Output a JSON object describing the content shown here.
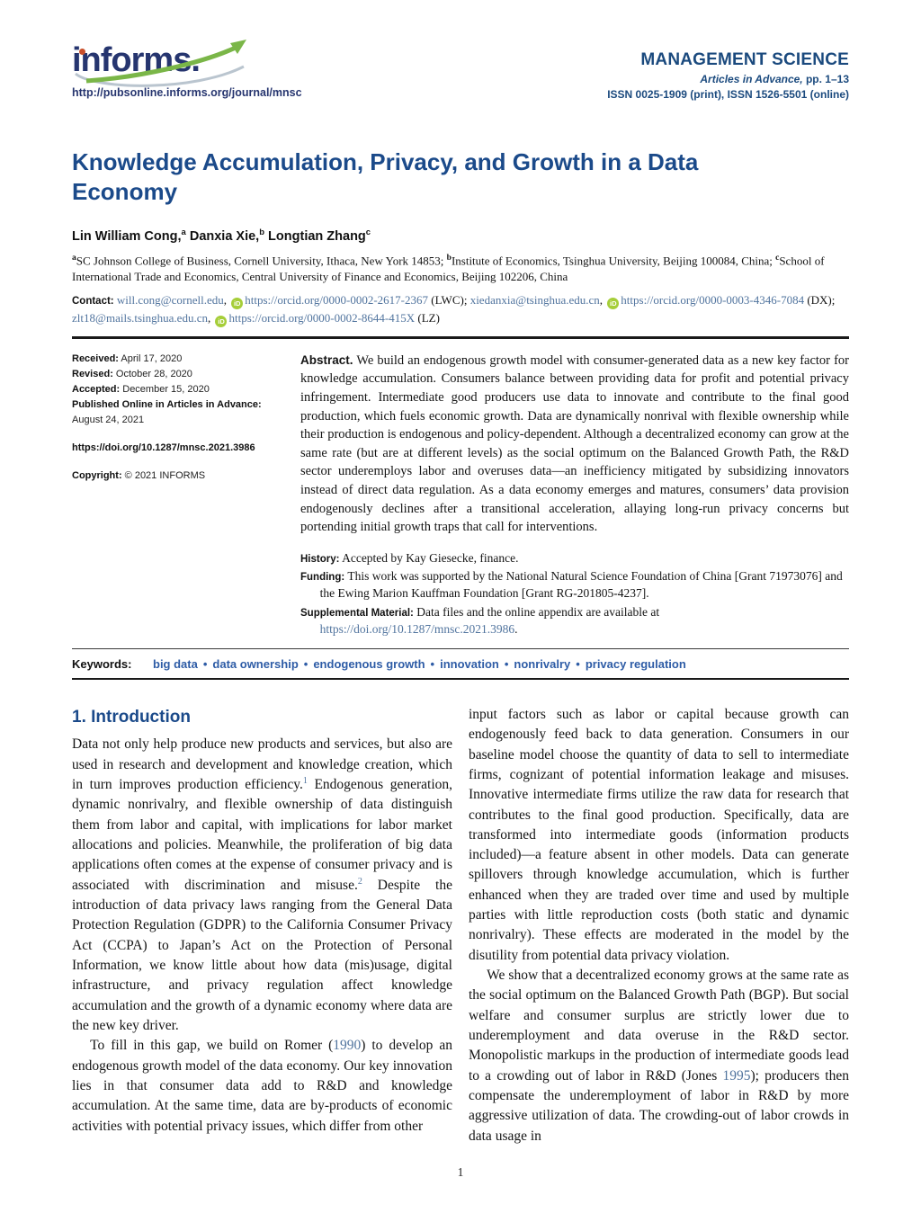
{
  "header": {
    "logo_text": "informs.",
    "logo_url": "http://pubsonline.informs.org/journal/mnsc",
    "journal": "MANAGEMENT SCIENCE",
    "issue_italic": "Articles in Advance,",
    "issue_rest": " pp. 1–13",
    "issn": "ISSN 0025-1909 (print), ISSN 1526-5501 (online)"
  },
  "title": "Knowledge Accumulation, Privacy, and Growth in a Data Economy",
  "authors": [
    {
      "name": "Lin William Cong,",
      "sup": "a"
    },
    {
      "name": " Danxia Xie,",
      "sup": "b"
    },
    {
      "name": " Longtian Zhang",
      "sup": "c"
    }
  ],
  "affiliations": [
    {
      "sup": "a",
      "text": "SC Johnson College of Business, Cornell University, Ithaca, New York 14853; "
    },
    {
      "sup": "b",
      "text": "Institute of Economics, Tsinghua University, Beijing 100084, China; "
    },
    {
      "sup": "c",
      "text": "School of International Trade and Economics, Central University of Finance and Economics, Beijing 102206, China"
    }
  ],
  "contact": {
    "label": "Contact:",
    "segments": [
      {
        "type": "link",
        "text": "will.cong@cornell.edu"
      },
      {
        "type": "text",
        "text": ", "
      },
      {
        "type": "orcid"
      },
      {
        "type": "link",
        "text": "https://orcid.org/0000-0002-2617-2367"
      },
      {
        "type": "text",
        "text": " (LWC); "
      },
      {
        "type": "link",
        "text": "xiedanxia@tsinghua.edu.cn"
      },
      {
        "type": "text",
        "text": ", "
      },
      {
        "type": "orcid"
      },
      {
        "type": "link",
        "text": "https://orcid.org/0000-0003-4346-7084"
      },
      {
        "type": "text",
        "text": " (DX); "
      },
      {
        "type": "link",
        "text": "zlt18@mails.tsinghua.edu.cn"
      },
      {
        "type": "text",
        "text": ", "
      },
      {
        "type": "orcid"
      },
      {
        "type": "link",
        "text": "https://orcid.org/0000-0002-8644-415X"
      },
      {
        "type": "text",
        "text": " (LZ)"
      }
    ]
  },
  "meta": {
    "received_label": "Received:",
    "received": " April 17, 2020",
    "revised_label": "Revised:",
    "revised": " October 28, 2020",
    "accepted_label": "Accepted:",
    "accepted": " December 15, 2020",
    "published_label": "Published Online in Articles in Advance:",
    "published": "August 24, 2021",
    "doi": "https://doi.org/10.1287/mnsc.2021.3986",
    "copyright_label": "Copyright:",
    "copyright": " © 2021 INFORMS"
  },
  "abstract": {
    "label": "Abstract.",
    "text": " We build an endogenous growth model with consumer-generated data as a new key factor for knowledge accumulation. Consumers balance between providing data for profit and potential privacy infringement. Intermediate good producers use data to innovate and contribute to the final good production, which fuels economic growth. Data are dynamically nonrival with flexible ownership while their production is endogenous and policy-dependent. Although a decentralized economy can grow at the same rate (but are at different levels) as the social optimum on the Balanced Growth Path, the R&D sector underemploys labor and overuses data—an inefficiency mitigated by subsidizing innovators instead of direct data regulation. As a data economy emerges and matures, consumers’ data provision endogenously declines after a transitional acceleration, allaying long-run privacy concerns but portending initial growth traps that call for interventions."
  },
  "history": {
    "label": "History:",
    "text": " Accepted by Kay Giesecke, finance."
  },
  "funding": {
    "label": "Funding:",
    "text": " This work was supported by the National Natural Science Foundation of China [Grant 71973076] and the Ewing Marion Kauffman Foundation [Grant RG-201805-4237]."
  },
  "supplemental": {
    "label": "Supplemental Material:",
    "text_before": " Data files and the online appendix are available at ",
    "link": "https://doi.org/10.1287/mnsc.2021.3986",
    "text_after": "."
  },
  "keywords": {
    "label": "Keywords:",
    "separator": "•",
    "items": [
      "big data",
      "data ownership",
      "endogenous growth",
      "innovation",
      "nonrivalry",
      "privacy regulation"
    ]
  },
  "body": {
    "heading": "1. Introduction",
    "left": [
      {
        "indent": false,
        "segments": [
          {
            "t": "Data not only help produce new products and services, but also are used in research and development and knowledge creation, which in turn improves production efficiency."
          },
          {
            "sup": "1"
          },
          {
            "t": " Endogenous generation, dynamic nonrivalry, and flexible ownership of data distinguish them from labor and capital, with implications for labor market allocations and policies. Meanwhile, the proliferation of big data applications often comes at the expense of consumer privacy and is associated with discrimination and misuse."
          },
          {
            "sup": "2"
          },
          {
            "t": " Despite the introduction of data privacy laws ranging from the General Data Protection Regulation (GDPR) to the California Consumer Privacy Act (CCPA) to Japan’s Act on the Protection of Personal Information, we know little about how data (mis)usage, digital infrastructure, and privacy regulation affect knowledge accumulation and the growth of a dynamic economy where data are the new key driver."
          }
        ]
      },
      {
        "indent": true,
        "segments": [
          {
            "t": "To fill in this gap, we build on Romer ("
          },
          {
            "cite": "1990"
          },
          {
            "t": ") to develop an endogenous growth model of the data economy. Our key innovation lies in that consumer data add to R&D and knowledge accumulation. At the same time, data are by-products of economic activities with potential privacy issues, which differ from other"
          }
        ]
      }
    ],
    "right": [
      {
        "indent": false,
        "segments": [
          {
            "t": "input factors such as labor or capital because growth can endogenously feed back to data generation. Consumers in our baseline model choose the quantity of data to sell to intermediate firms, cognizant of potential information leakage and misuses. Innovative intermediate firms utilize the raw data for research that contributes to the final good production. Specifically, data are transformed into intermediate goods (information products included)—a feature absent in other models. Data can generate spillovers through knowledge accumulation, which is further enhanced when they are traded over time and used by multiple parties with little reproduction costs (both static and dynamic nonrivalry). These effects are moderated in the model by the disutility from potential data privacy violation."
          }
        ]
      },
      {
        "indent": true,
        "segments": [
          {
            "t": "We show that a decentralized economy grows at the same rate as the social optimum on the Balanced Growth Path (BGP). But social welfare and consumer surplus are strictly lower due to underemployment and data overuse in the R&D sector. Monopolistic markups in the production of intermediate goods lead to a crowding out of labor in R&D (Jones "
          },
          {
            "cite": "1995"
          },
          {
            "t": "); producers then compensate the underemployment of labor in R&D by more aggressive utilization of data. The crowding-out of labor crowds in data usage in"
          }
        ]
      }
    ]
  },
  "footer": {
    "page_number": "1"
  }
}
